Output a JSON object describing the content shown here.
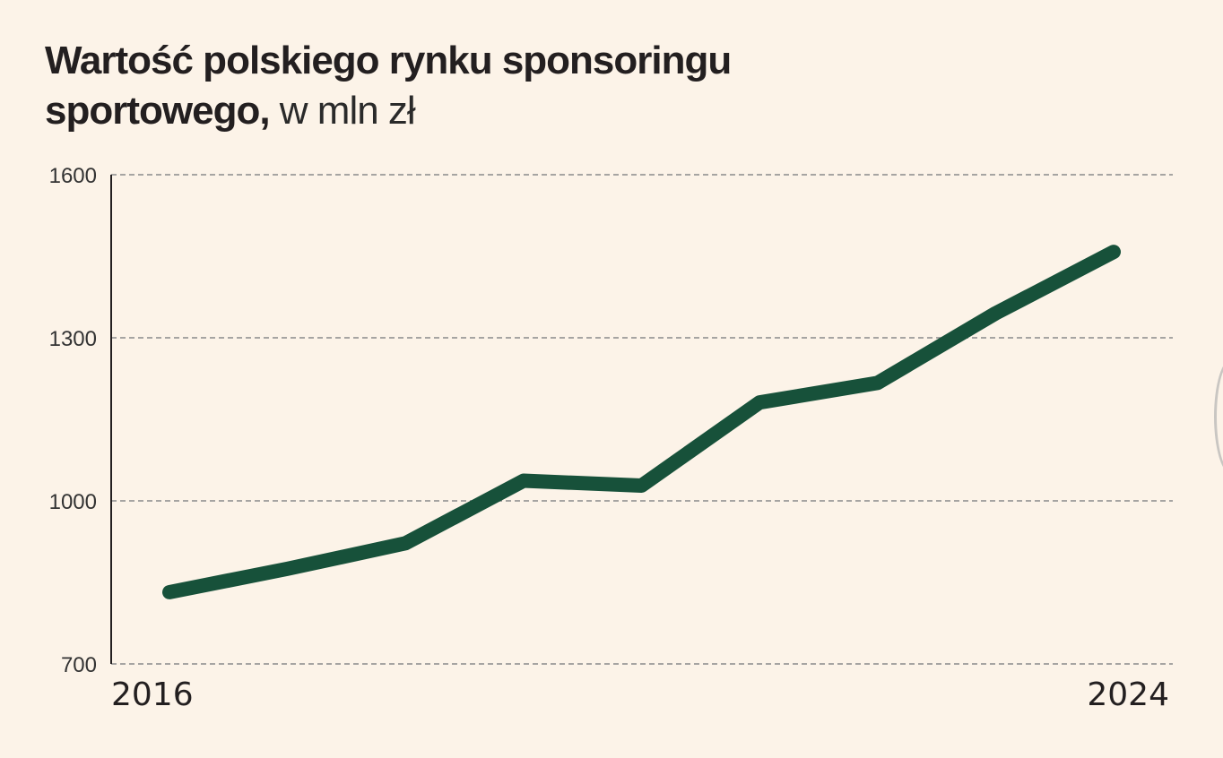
{
  "title": {
    "bold": "Wartość polskiego rynku sponsoringu sportowego,",
    "light": " w mln zł"
  },
  "colors": {
    "background": "#fcf3e8",
    "line": "#17513a",
    "grid": "#8a8a8a",
    "axis": "#231f20"
  },
  "chart_data": {
    "type": "line",
    "title": "Wartość polskiego rynku sponsoringu sportowego, w mln zł",
    "x": [
      2016,
      2017,
      2018,
      2019,
      2020,
      2021,
      2022,
      2023,
      2024
    ],
    "x_tick_labels": [
      "2016",
      "2024"
    ],
    "series": [
      {
        "values": [
          832,
          875,
          922,
          1037,
          1028,
          1181,
          1217,
          1345,
          1458
        ]
      }
    ],
    "y_ticks": [
      700,
      1000,
      1300,
      1600
    ],
    "y_tick_labels": [
      "700",
      "1000",
      "1300",
      "1600"
    ],
    "ylim": [
      700,
      1600
    ],
    "grid": "horizontal dashed",
    "legend": "none"
  }
}
